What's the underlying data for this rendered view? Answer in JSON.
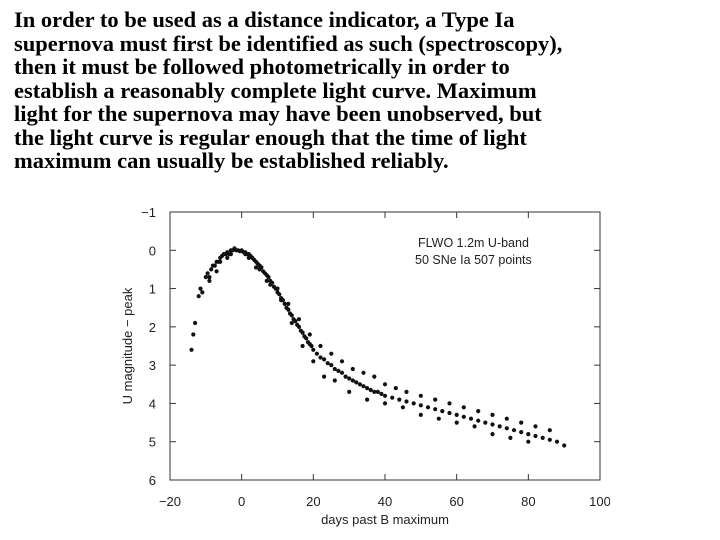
{
  "paragraph": {
    "lines": [
      "In order to be used as a distance indicator, a Type Ia",
      "supernova must first be identified as such (spectroscopy),",
      "then it must be followed photometrically in order to",
      "establish a reasonably complete light curve. Maximum",
      "light for the supernova may have been unobserved, but",
      "the light curve is regular enough that the time of light",
      "maximum can usually be established reliably."
    ]
  },
  "chart_data": {
    "type": "scatter",
    "xlabel": "days past B maximum",
    "ylabel": "U magnitude − peak",
    "xlim": [
      -20,
      100
    ],
    "ylim": [
      -1,
      6
    ],
    "y_inverted": true,
    "xticks": [
      -20,
      0,
      20,
      40,
      60,
      80,
      100
    ],
    "yticks": [
      -1,
      0,
      1,
      2,
      3,
      4,
      5,
      6
    ],
    "xtick_labels": [
      "−20",
      "0",
      "20",
      "40",
      "60",
      "80",
      "100"
    ],
    "ytick_labels": [
      "−1",
      "0",
      "1",
      "2",
      "3",
      "4",
      "5",
      "6"
    ],
    "annotations": [
      "FLWO 1.2m U-band",
      "50 SNe Ia  507 points"
    ],
    "grid": false,
    "series": [
      {
        "points": [
          [
            -14,
            2.6
          ],
          [
            -13.5,
            2.2
          ],
          [
            -13,
            1.9
          ],
          [
            -12,
            1.2
          ],
          [
            -11.5,
            1.0
          ],
          [
            -11,
            1.1
          ],
          [
            -10,
            0.7
          ],
          [
            -9.5,
            0.6
          ],
          [
            -9,
            0.7
          ],
          [
            -8.5,
            0.5
          ],
          [
            -8,
            0.4
          ],
          [
            -7.5,
            0.4
          ],
          [
            -7,
            0.3
          ],
          [
            -6.5,
            0.3
          ],
          [
            -6,
            0.2
          ],
          [
            -5.5,
            0.15
          ],
          [
            -5,
            0.1
          ],
          [
            -4.5,
            0.1
          ],
          [
            -4,
            0.05
          ],
          [
            -3.5,
            0.1
          ],
          [
            -3,
            0.0
          ],
          [
            -2.5,
            0.0
          ],
          [
            -2,
            -0.05
          ],
          [
            -1.5,
            0.0
          ],
          [
            -1,
            0.0
          ],
          [
            -0.5,
            0.02
          ],
          [
            0,
            0.0
          ],
          [
            0.5,
            0.05
          ],
          [
            1,
            0.05
          ],
          [
            1.5,
            0.1
          ],
          [
            2,
            0.1
          ],
          [
            2.5,
            0.15
          ],
          [
            3,
            0.2
          ],
          [
            3.5,
            0.25
          ],
          [
            4,
            0.3
          ],
          [
            4.5,
            0.35
          ],
          [
            5,
            0.4
          ],
          [
            5.5,
            0.45
          ],
          [
            6,
            0.55
          ],
          [
            6.5,
            0.6
          ],
          [
            7,
            0.65
          ],
          [
            7.5,
            0.7
          ],
          [
            8,
            0.8
          ],
          [
            8.5,
            0.85
          ],
          [
            9,
            0.95
          ],
          [
            9.5,
            1.0
          ],
          [
            10,
            1.1
          ],
          [
            10.5,
            1.15
          ],
          [
            11,
            1.25
          ],
          [
            11.5,
            1.3
          ],
          [
            12,
            1.4
          ],
          [
            12.5,
            1.5
          ],
          [
            13,
            1.55
          ],
          [
            13.5,
            1.65
          ],
          [
            14,
            1.7
          ],
          [
            14.5,
            1.8
          ],
          [
            15,
            1.85
          ],
          [
            15.5,
            1.95
          ],
          [
            16,
            2.0
          ],
          [
            16.5,
            2.1
          ],
          [
            17,
            2.15
          ],
          [
            17.5,
            2.25
          ],
          [
            18,
            2.3
          ],
          [
            18.5,
            2.4
          ],
          [
            19,
            2.45
          ],
          [
            19.5,
            2.5
          ],
          [
            20,
            2.6
          ],
          [
            21,
            2.7
          ],
          [
            22,
            2.8
          ],
          [
            23,
            2.85
          ],
          [
            24,
            2.95
          ],
          [
            25,
            3.0
          ],
          [
            26,
            3.1
          ],
          [
            27,
            3.15
          ],
          [
            28,
            3.2
          ],
          [
            29,
            3.3
          ],
          [
            30,
            3.35
          ],
          [
            31,
            3.4
          ],
          [
            32,
            3.45
          ],
          [
            33,
            3.5
          ],
          [
            34,
            3.55
          ],
          [
            35,
            3.6
          ],
          [
            36,
            3.65
          ],
          [
            37,
            3.7
          ],
          [
            38,
            3.7
          ],
          [
            39,
            3.75
          ],
          [
            40,
            3.8
          ],
          [
            42,
            3.85
          ],
          [
            44,
            3.9
          ],
          [
            46,
            3.95
          ],
          [
            48,
            4.0
          ],
          [
            50,
            4.05
          ],
          [
            52,
            4.1
          ],
          [
            54,
            4.15
          ],
          [
            56,
            4.2
          ],
          [
            58,
            4.25
          ],
          [
            60,
            4.3
          ],
          [
            62,
            4.35
          ],
          [
            64,
            4.4
          ],
          [
            66,
            4.45
          ],
          [
            68,
            4.5
          ],
          [
            70,
            4.55
          ],
          [
            72,
            4.6
          ],
          [
            74,
            4.65
          ],
          [
            76,
            4.7
          ],
          [
            78,
            4.75
          ],
          [
            80,
            4.8
          ],
          [
            82,
            4.85
          ],
          [
            84,
            4.9
          ],
          [
            86,
            4.95
          ],
          [
            88,
            5.0
          ],
          [
            90,
            5.1
          ],
          [
            -9,
            0.8
          ],
          [
            -6,
            0.3
          ],
          [
            -3,
            0.1
          ],
          [
            2,
            0.2
          ],
          [
            5,
            0.5
          ],
          [
            8,
            0.9
          ],
          [
            11,
            1.3
          ],
          [
            14,
            1.9
          ],
          [
            17,
            2.5
          ],
          [
            20,
            2.9
          ],
          [
            23,
            3.3
          ],
          [
            26,
            3.4
          ],
          [
            30,
            3.7
          ],
          [
            35,
            3.9
          ],
          [
            40,
            4.0
          ],
          [
            45,
            4.1
          ],
          [
            50,
            4.3
          ],
          [
            55,
            4.4
          ],
          [
            60,
            4.5
          ],
          [
            65,
            4.6
          ],
          [
            70,
            4.8
          ],
          [
            75,
            4.9
          ],
          [
            80,
            5.0
          ],
          [
            -7,
            0.55
          ],
          [
            -4,
            0.2
          ],
          [
            1,
            0.1
          ],
          [
            4,
            0.45
          ],
          [
            7,
            0.8
          ],
          [
            10,
            1.0
          ],
          [
            13,
            1.4
          ],
          [
            16,
            1.8
          ],
          [
            19,
            2.2
          ],
          [
            22,
            2.5
          ],
          [
            25,
            2.7
          ],
          [
            28,
            2.9
          ],
          [
            31,
            3.1
          ],
          [
            34,
            3.2
          ],
          [
            37,
            3.3
          ],
          [
            40,
            3.5
          ],
          [
            43,
            3.6
          ],
          [
            46,
            3.7
          ],
          [
            50,
            3.8
          ],
          [
            54,
            3.9
          ],
          [
            58,
            4.0
          ],
          [
            62,
            4.1
          ],
          [
            66,
            4.2
          ],
          [
            70,
            4.3
          ],
          [
            74,
            4.4
          ],
          [
            78,
            4.5
          ],
          [
            82,
            4.6
          ],
          [
            86,
            4.7
          ]
        ]
      }
    ]
  }
}
